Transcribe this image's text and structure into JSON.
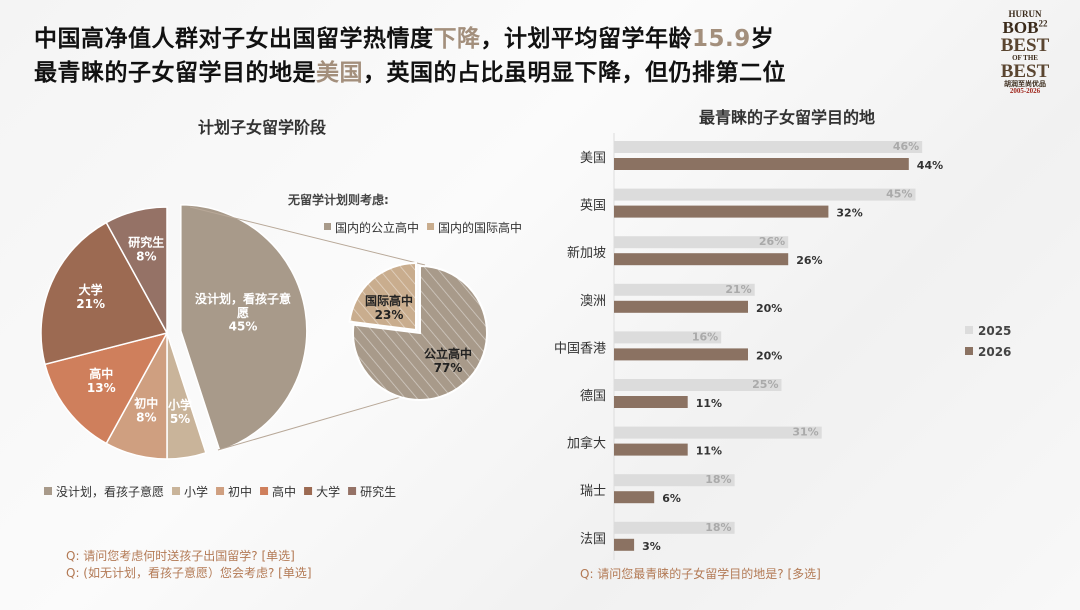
{
  "header": {
    "line1": [
      {
        "t": "中国高净值人群对子女出国留学热情度",
        "a": false
      },
      {
        "t": "下降",
        "a": true
      },
      {
        "t": "，计划平均留学年龄",
        "a": false
      },
      {
        "t": "15.9",
        "a": true
      },
      {
        "t": "岁",
        "a": false
      }
    ],
    "line2": [
      {
        "t": "最青睐的子女留学目的地是",
        "a": false
      },
      {
        "t": "美国",
        "a": true
      },
      {
        "t": "，英国的占比虽明显下降，但仍排第二位",
        "a": false
      }
    ],
    "accent_color": "#a38f7c"
  },
  "logo": {
    "brand": "HURUN",
    "name": "BOB",
    "edition": "22",
    "tagline": "BEST OF THE BEST",
    "cn": "胡润至尚优品",
    "years": "2005-2026"
  },
  "questions_left": [
    "Q: 请问您考虑何时送孩子出国留学? [单选]",
    "Q: (如无计划，看孩子意愿）您会考虑? [单选]"
  ],
  "question_right": "Q: 请问您最青睐的子女留学目的地是? [多选]",
  "chart_data": [
    {
      "type": "pie",
      "title": "计划子女留学阶段",
      "categories": [
        "没计划，看孩子意愿",
        "小学",
        "初中",
        "高中",
        "大学",
        "研究生"
      ],
      "labels": [
        "没计划，看孩子意\n愿",
        "小学",
        "初中",
        "高中",
        "大学",
        "研究生"
      ],
      "values": [
        45,
        5,
        8,
        13,
        21,
        8
      ],
      "colors": [
        "#a89a8a",
        "#c9b49a",
        "#cf9f80",
        "#cf7f5c",
        "#9c6a52",
        "#957266"
      ],
      "exploded": "没计划，看孩子意愿",
      "legend_position": "bottom"
    },
    {
      "type": "pie",
      "title": "无留学计划则考虑:",
      "legend": [
        "国内的公立高中",
        "国内的国际高中"
      ],
      "categories": [
        "公立高中",
        "国际高中"
      ],
      "values": [
        77,
        23
      ],
      "colors": [
        "#a89a8a",
        "#c9ad8e"
      ],
      "fill": "hatched",
      "legend_position": "top"
    },
    {
      "type": "bar",
      "orientation": "horizontal",
      "title": "最青睐的子女留学目的地",
      "categories": [
        "美国",
        "英国",
        "新加坡",
        "澳洲",
        "中国香港",
        "德国",
        "加拿大",
        "瑞士",
        "法国"
      ],
      "series": [
        {
          "name": "2025",
          "values": [
            46,
            45,
            26,
            21,
            16,
            25,
            31,
            18,
            18
          ],
          "color": "#dcdcdc"
        },
        {
          "name": "2026",
          "values": [
            44,
            32,
            26,
            20,
            20,
            11,
            11,
            6,
            3
          ],
          "color": "#8b7262"
        }
      ],
      "unit": "%",
      "legend_position": "right"
    }
  ]
}
